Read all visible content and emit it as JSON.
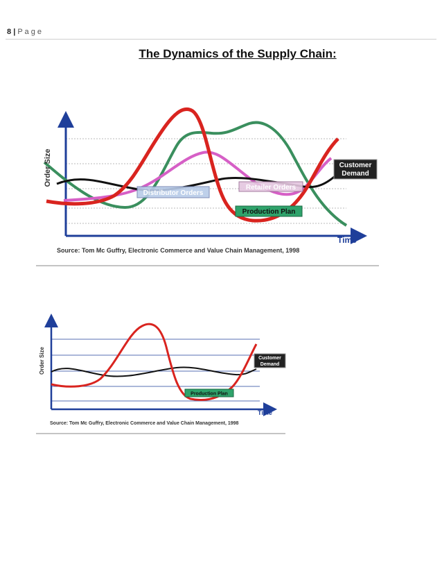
{
  "header": {
    "page_number": "8",
    "separator": "|",
    "page_word": "P a g e"
  },
  "title": "The Dynamics of the Supply Chain:",
  "figure1": {
    "y_axis_label": "Order Size",
    "x_axis_label": "Time",
    "labels": {
      "customer_demand_line1": "Customer",
      "customer_demand_line2": "Demand",
      "distributor_orders": "Distributor Orders",
      "retailer_orders": "Retailer Orders",
      "production_plan": "Production Plan"
    },
    "source": "Source: Tom Mc Guffry, Electronic Commerce and Value Chain Management, 1998",
    "colors": {
      "customer": "#111111",
      "production": "#d9241f",
      "distributor": "#3a8f5e",
      "retailer": "#d65fc6"
    }
  },
  "figure2": {
    "y_axis_label": "Order Size",
    "x_axis_label": "Time",
    "labels": {
      "customer_demand_line1": "Customer",
      "customer_demand_line2": "Demand",
      "production_plan": "Production Plan"
    },
    "source": "Source: Tom Mc Guffry, Electronic Commerce and Value Chain Management, 1998"
  }
}
